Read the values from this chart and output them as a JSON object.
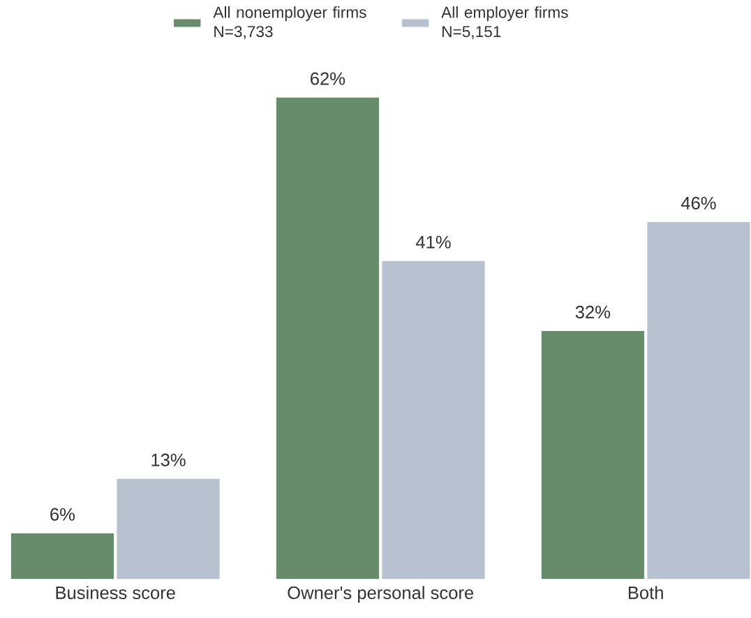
{
  "chart_data": {
    "type": "bar",
    "categories": [
      "Business score",
      "Owner's personal score",
      "Both"
    ],
    "series": [
      {
        "name": "All nonemployer firms N=3,733",
        "color": "#678c6b",
        "values": [
          6,
          62,
          32
        ],
        "value_labels": [
          "6%",
          "62%",
          "32%"
        ]
      },
      {
        "name": "All employer firms N=5,151",
        "color": "#b8c1d0",
        "values": [
          13,
          41,
          46
        ],
        "value_labels": [
          "13%",
          "41%",
          "46%"
        ]
      }
    ],
    "legend": "top"
  }
}
